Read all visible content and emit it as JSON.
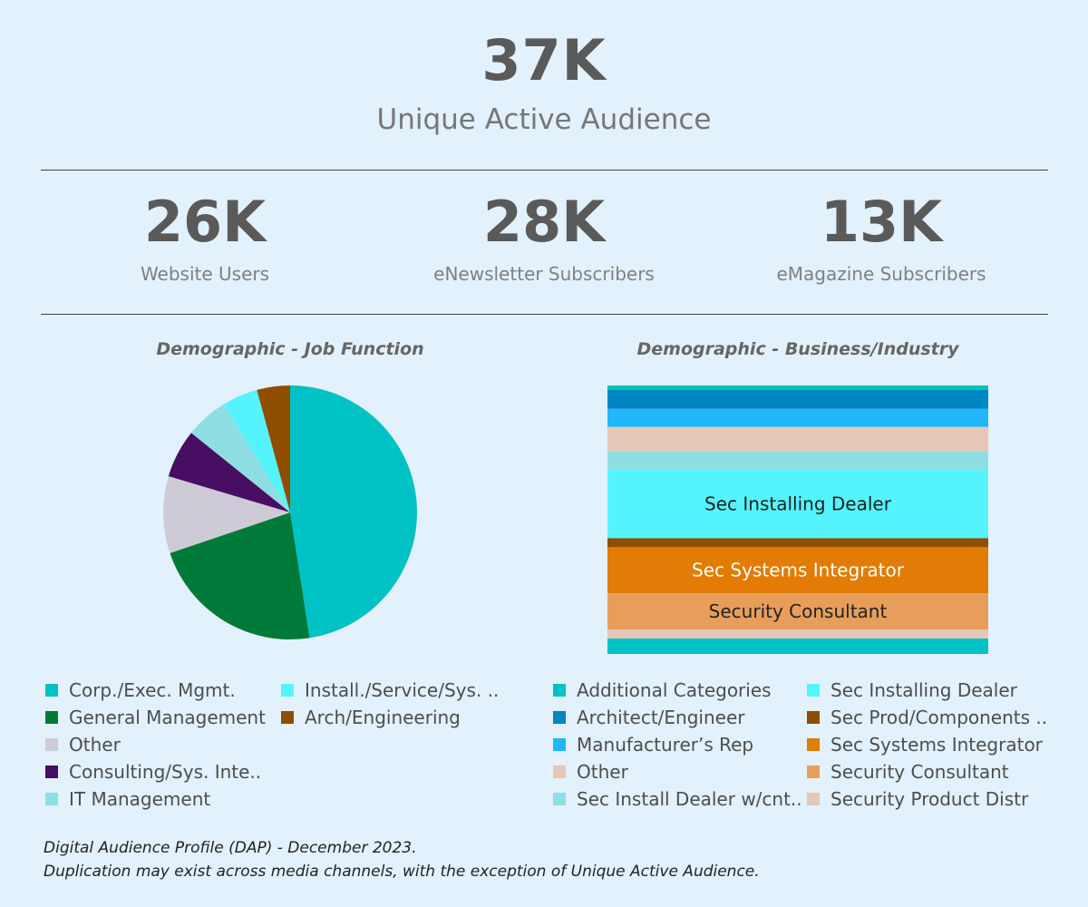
{
  "summary": {
    "unique_active_audience": {
      "value": "37K",
      "label": "Unique Active Audience"
    },
    "stats": [
      {
        "value": "26K",
        "label": "Website Users"
      },
      {
        "value": "28K",
        "label": "eNewsletter Subscribers"
      },
      {
        "value": "13K",
        "label": "eMagazine Subscribers"
      }
    ]
  },
  "chart_data": [
    {
      "type": "pie",
      "title": "Demographic - Job Function",
      "categories": [
        "Corp./Exec. Mgmt.",
        "General Management",
        "Other",
        "Consulting/Sys. Inte..",
        "IT Management",
        "Install./Service/Sys. ..",
        "Arch/Engineering"
      ],
      "legend_labels": [
        "Corp./Exec. Mgmt.",
        "Install./Service/Sys. ..",
        "General Management",
        "Arch/Engineering",
        "Other",
        "Consulting/Sys. Inte..",
        "IT Management"
      ],
      "values": [
        48.5,
        22.7,
        10.0,
        6.3,
        5.6,
        4.6,
        4.3
      ],
      "colors": [
        "#00c1c3",
        "#007a38",
        "#cfcbd6",
        "#470e63",
        "#8fdee3",
        "#55f4fd",
        "#8f4d00"
      ],
      "legend_colors": [
        "#00c1c3",
        "#55f4fd",
        "#007a38",
        "#8f4d00",
        "#cfcbd6",
        "#470e63",
        "#8fdee3"
      ]
    },
    {
      "type": "treemap",
      "title": "Demographic - Business/Industry",
      "categories": [
        "Additional Categories",
        "Architect/Engineer",
        "Manufacturer's Rep",
        "Other",
        "Sec Install Dealer w/cnt..",
        "Sec Installing Dealer",
        "Sec Prod/Components ..",
        "Sec Systems Integrator",
        "Security Consultant",
        "Security Product Distr",
        "Additional Categories"
      ],
      "legend_labels": [
        "Additional Categories",
        "Sec Installing Dealer",
        "Architect/Engineer",
        "Sec Prod/Components ..",
        "Manufacturer’s Rep",
        "Sec Systems Integrator",
        "Other",
        "Security Consultant",
        "Sec Install Dealer w/cnt..",
        "Security Product Distr"
      ],
      "values": [
        1.7,
        7.1,
        6.8,
        9.2,
        6.8,
        25.8,
        3.4,
        17.3,
        13.6,
        3.4,
        5.8
      ],
      "colors": [
        "#00c1c3",
        "#0086c2",
        "#22b6fb",
        "#e4c8b7",
        "#8fdee3",
        "#55f4fd",
        "#8f4d00",
        "#e27c04",
        "#e89e5a",
        "#e4c8b7",
        "#00c1c3"
      ],
      "block_labels": [
        "",
        "",
        "",
        "",
        "",
        "Sec Installing Dealer",
        "",
        "Sec Systems Integrator",
        "Security Consultant",
        "",
        ""
      ],
      "label_colors": [
        "",
        "",
        "",
        "",
        "",
        "#222222",
        "",
        "#ffffff",
        "#222222",
        "",
        ""
      ],
      "legend_colors": [
        "#00c1c3",
        "#55f4fd",
        "#0086c2",
        "#8f4d00",
        "#22b6fb",
        "#e27c04",
        "#e4c8b7",
        "#e89e5a",
        "#8fdee3",
        "#e4c8b7"
      ]
    }
  ],
  "footnote": {
    "line1": "Digital Audience Profile (DAP) - December 2023.",
    "line2": "Duplication may exist across media channels, with the exception of Unique Active Audience."
  }
}
